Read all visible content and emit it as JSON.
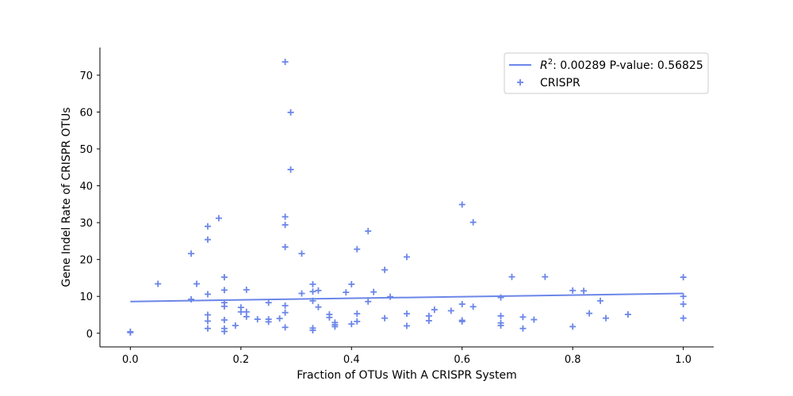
{
  "chart_data": {
    "type": "scatter",
    "xlabel": "Fraction of OTUs With A CRISPR System",
    "ylabel": "Gene Indel Rate of CRISPR OTUs",
    "xlim": [
      -0.055,
      1.055
    ],
    "ylim": [
      -3.7,
      77.5
    ],
    "xticks": [
      0.0,
      0.2,
      0.4,
      0.6,
      0.8,
      1.0
    ],
    "xtick_labels": [
      "0.0",
      "0.2",
      "0.4",
      "0.6",
      "0.8",
      "1.0"
    ],
    "yticks": [
      0,
      10,
      20,
      30,
      40,
      50,
      60,
      70
    ],
    "ytick_labels": [
      "0",
      "10",
      "20",
      "30",
      "40",
      "50",
      "60",
      "70"
    ],
    "grid": false,
    "legend_position": "top-right",
    "legend": {
      "fit_label_prefix": "R",
      "fit_label_sup": "2",
      "fit_label_rest": ": 0.00289 P-value: 0.56825",
      "scatter_label": "CRISPR"
    },
    "color": "#6b86e8",
    "fit_line": {
      "x0": 0.0,
      "y0": 8.6,
      "x1": 1.0,
      "y1": 10.8
    },
    "points": [
      [
        0.0,
        0.2
      ],
      [
        0.0,
        0.4
      ],
      [
        0.05,
        13.4
      ],
      [
        0.11,
        21.6
      ],
      [
        0.11,
        9.2
      ],
      [
        0.12,
        13.4
      ],
      [
        0.14,
        10.6
      ],
      [
        0.14,
        25.4
      ],
      [
        0.14,
        29.0
      ],
      [
        0.14,
        5.0
      ],
      [
        0.14,
        3.3
      ],
      [
        0.14,
        1.3
      ],
      [
        0.16,
        31.2
      ],
      [
        0.17,
        15.2
      ],
      [
        0.17,
        11.7
      ],
      [
        0.17,
        8.3
      ],
      [
        0.17,
        7.3
      ],
      [
        0.17,
        3.6
      ],
      [
        0.17,
        1.3
      ],
      [
        0.17,
        0.5
      ],
      [
        0.19,
        2.1
      ],
      [
        0.2,
        7.0
      ],
      [
        0.2,
        5.8
      ],
      [
        0.21,
        11.8
      ],
      [
        0.21,
        5.8
      ],
      [
        0.21,
        4.5
      ],
      [
        0.23,
        3.8
      ],
      [
        0.25,
        8.3
      ],
      [
        0.25,
        3.8
      ],
      [
        0.25,
        3.1
      ],
      [
        0.27,
        4.0
      ],
      [
        0.28,
        73.6
      ],
      [
        0.29,
        59.9
      ],
      [
        0.29,
        44.4
      ],
      [
        0.28,
        31.6
      ],
      [
        0.28,
        29.4
      ],
      [
        0.28,
        23.4
      ],
      [
        0.28,
        7.5
      ],
      [
        0.28,
        5.6
      ],
      [
        0.28,
        1.6
      ],
      [
        0.31,
        21.6
      ],
      [
        0.31,
        10.8
      ],
      [
        0.33,
        13.3
      ],
      [
        0.33,
        11.3
      ],
      [
        0.33,
        8.8
      ],
      [
        0.33,
        1.4
      ],
      [
        0.33,
        0.8
      ],
      [
        0.34,
        11.6
      ],
      [
        0.34,
        7.1
      ],
      [
        0.36,
        5.1
      ],
      [
        0.36,
        4.3
      ],
      [
        0.37,
        2.9
      ],
      [
        0.37,
        2.3
      ],
      [
        0.37,
        1.8
      ],
      [
        0.39,
        11.1
      ],
      [
        0.4,
        13.3
      ],
      [
        0.4,
        2.5
      ],
      [
        0.41,
        22.8
      ],
      [
        0.41,
        5.3
      ],
      [
        0.41,
        3.2
      ],
      [
        0.43,
        27.7
      ],
      [
        0.43,
        8.6
      ],
      [
        0.44,
        11.2
      ],
      [
        0.46,
        17.2
      ],
      [
        0.46,
        4.1
      ],
      [
        0.47,
        9.9
      ],
      [
        0.5,
        20.7
      ],
      [
        0.5,
        5.3
      ],
      [
        0.5,
        2.0
      ],
      [
        0.54,
        4.7
      ],
      [
        0.54,
        3.4
      ],
      [
        0.55,
        6.4
      ],
      [
        0.58,
        6.1
      ],
      [
        0.6,
        34.9
      ],
      [
        0.6,
        7.9
      ],
      [
        0.6,
        3.5
      ],
      [
        0.6,
        3.2
      ],
      [
        0.62,
        30.1
      ],
      [
        0.62,
        7.2
      ],
      [
        0.67,
        9.7
      ],
      [
        0.67,
        4.7
      ],
      [
        0.67,
        2.8
      ],
      [
        0.67,
        2.1
      ],
      [
        0.69,
        15.3
      ],
      [
        0.71,
        4.4
      ],
      [
        0.71,
        1.3
      ],
      [
        0.73,
        3.7
      ],
      [
        0.75,
        15.3
      ],
      [
        0.8,
        11.6
      ],
      [
        0.8,
        1.8
      ],
      [
        0.82,
        11.5
      ],
      [
        0.83,
        5.4
      ],
      [
        0.85,
        8.8
      ],
      [
        0.86,
        4.1
      ],
      [
        0.9,
        5.1
      ],
      [
        1.0,
        15.2
      ],
      [
        1.0,
        10.0
      ],
      [
        1.0,
        7.9
      ],
      [
        1.0,
        4.1
      ]
    ]
  }
}
